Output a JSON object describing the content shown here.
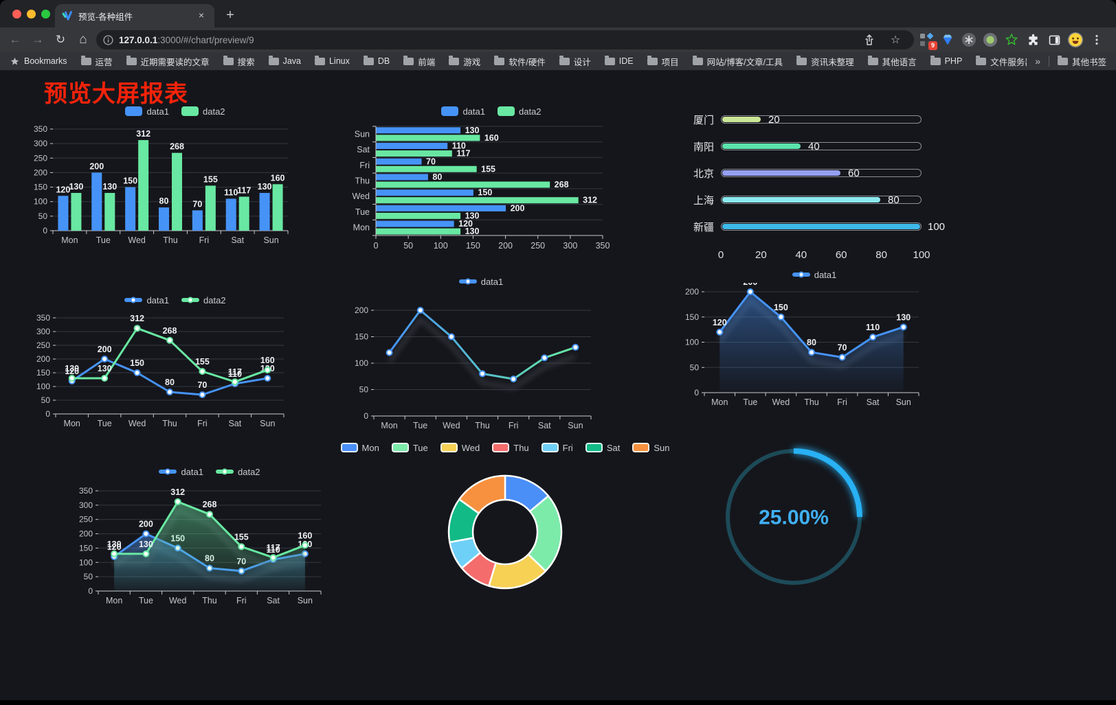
{
  "browser": {
    "tab": {
      "title": "预览-各种组件",
      "close_label": "×",
      "newtab_label": "+"
    },
    "url": {
      "host": "127.0.0.1",
      "rest": ":3000/#/chart/preview/9"
    },
    "extensions_badge": "9",
    "bookmarks_bar": {
      "bookmarks_label": "Bookmarks",
      "folders": [
        "运营",
        "近期需要读的文章",
        "搜索",
        "Java",
        "Linux",
        "DB",
        "前端",
        "游戏",
        "软件/硬件",
        "设计",
        "IDE",
        "项目",
        "网站/博客/文章/工具",
        "资讯未整理",
        "其他语言",
        "PHP",
        "文件服务器"
      ],
      "overflow": "»",
      "other_bookmarks": "其他书签"
    }
  },
  "page": {
    "title": "预览大屏报表",
    "title_color": "#f6230a"
  },
  "chart_data": [
    {
      "type": "bar",
      "legend_icon": "bar",
      "categories": [
        "Mon",
        "Tue",
        "Wed",
        "Thu",
        "Fri",
        "Sat",
        "Sun"
      ],
      "series": [
        {
          "name": "data1",
          "color": "#4693f7",
          "values": [
            120,
            200,
            150,
            80,
            70,
            110,
            130
          ]
        },
        {
          "name": "data2",
          "color": "#68e8a2",
          "values": [
            130,
            130,
            312,
            268,
            155,
            117,
            160
          ]
        }
      ],
      "ylim": [
        0,
        350
      ],
      "ytick": 50,
      "value_labels": true,
      "grid": true,
      "legend_position": "top"
    },
    {
      "type": "bar-horizontal",
      "legend_icon": "bar",
      "categories": [
        "Mon",
        "Tue",
        "Wed",
        "Thu",
        "Fri",
        "Sat",
        "Sun"
      ],
      "series": [
        {
          "name": "data1",
          "color": "#4693f7",
          "values": [
            120,
            200,
            150,
            80,
            70,
            110,
            130
          ]
        },
        {
          "name": "data2",
          "color": "#68e8a2",
          "values": [
            130,
            130,
            312,
            268,
            155,
            117,
            160
          ]
        }
      ],
      "xlim": [
        0,
        350
      ],
      "xtick": 50,
      "value_labels": true,
      "grid": true,
      "legend_position": "top"
    },
    {
      "type": "progress",
      "max": 100,
      "axis_ticks": [
        0,
        20,
        40,
        60,
        80,
        100
      ],
      "items": [
        {
          "label": "厦门",
          "value": 20,
          "color": "#cbe897"
        },
        {
          "label": "南阳",
          "value": 40,
          "color": "#5be3ad"
        },
        {
          "label": "北京",
          "value": 60,
          "color": "#959ff2"
        },
        {
          "label": "上海",
          "value": 80,
          "color": "#8be9ef"
        },
        {
          "label": "新疆",
          "value": 100,
          "color": "#3eb9e9"
        }
      ]
    },
    {
      "type": "line",
      "legend_icon": "line",
      "categories": [
        "Mon",
        "Tue",
        "Wed",
        "Thu",
        "Fri",
        "Sat",
        "Sun"
      ],
      "series": [
        {
          "name": "data1",
          "color": "#4693f7",
          "values": [
            120,
            200,
            150,
            80,
            70,
            110,
            130
          ]
        },
        {
          "name": "data2",
          "color": "#68e8a2",
          "values": [
            130,
            130,
            312,
            268,
            155,
            117,
            160
          ]
        }
      ],
      "ylim": [
        0,
        350
      ],
      "ytick": 50,
      "value_labels": true,
      "grid": true,
      "legend_position": "top"
    },
    {
      "type": "line",
      "legend_icon": "line",
      "shadow": true,
      "gradient": [
        "#4693f7",
        "#68e8a2"
      ],
      "categories": [
        "Mon",
        "Tue",
        "Wed",
        "Thu",
        "Fri",
        "Sat",
        "Sun"
      ],
      "series": [
        {
          "name": "data1",
          "color": "#4693f7",
          "values": [
            120,
            200,
            150,
            80,
            70,
            110,
            130
          ]
        }
      ],
      "ylim": [
        0,
        200
      ],
      "ytick": 50,
      "value_labels": false,
      "grid": true,
      "legend_position": "top"
    },
    {
      "type": "line",
      "legend_icon": "line",
      "shadow": true,
      "categories": [
        "Mon",
        "Tue",
        "Wed",
        "Thu",
        "Fri",
        "Sat",
        "Sun"
      ],
      "series": [
        {
          "name": "data1",
          "color": "#4693f7",
          "area": true,
          "values": [
            120,
            200,
            150,
            80,
            70,
            110,
            130
          ]
        }
      ],
      "ylim": [
        0,
        200
      ],
      "ytick": 50,
      "value_labels": true,
      "grid": true,
      "legend_position": "top"
    },
    {
      "type": "line",
      "legend_icon": "line",
      "shadow": true,
      "categories": [
        "Mon",
        "Tue",
        "Wed",
        "Thu",
        "Fri",
        "Sat",
        "Sun"
      ],
      "series": [
        {
          "name": "data1",
          "color": "#4693f7",
          "area": true,
          "values": [
            120,
            200,
            150,
            80,
            70,
            110,
            130
          ]
        },
        {
          "name": "data2",
          "color": "#68e8a2",
          "area": true,
          "values": [
            130,
            130,
            312,
            268,
            155,
            117,
            160
          ]
        }
      ],
      "ylim": [
        0,
        350
      ],
      "ytick": 50,
      "value_labels": true,
      "grid": true,
      "legend_position": "top"
    },
    {
      "type": "donut",
      "legend_icon": "pie",
      "legend_position": "top",
      "items": [
        {
          "label": "Mon",
          "value": 120,
          "color": "#4a8ef8"
        },
        {
          "label": "Tue",
          "value": 200,
          "color": "#7cebaa"
        },
        {
          "label": "Wed",
          "value": 150,
          "color": "#f7d154"
        },
        {
          "label": "Thu",
          "value": 80,
          "color": "#f56c6c"
        },
        {
          "label": "Fri",
          "value": 70,
          "color": "#6fd0f7"
        },
        {
          "label": "Sat",
          "value": 110,
          "color": "#12ba86"
        },
        {
          "label": "Sun",
          "value": 130,
          "color": "#f7913f"
        }
      ]
    },
    {
      "type": "gauge",
      "value": 25,
      "max": 100,
      "display": "25.00%",
      "arc_color": "#28b1f4",
      "track_color": "#1d4a58",
      "text_color": "#40b0f4"
    }
  ]
}
